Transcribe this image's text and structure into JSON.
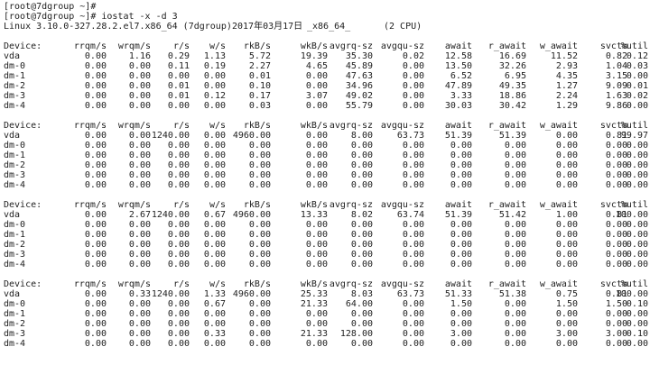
{
  "terminal": {
    "prompt_lines": [
      "[root@7dgroup ~]#",
      "[root@7dgroup ~]# iostat -x -d 3"
    ],
    "sysinfo": [
      "Linux 3.10.0-327.28.2.el7.x86_64 (7dgroup)",
      "2017年03月17日",
      "_x86_64_",
      "(2 CPU)"
    ],
    "reports": [
      {
        "header": [
          "Device:",
          "rrqm/s",
          "wrqm/s",
          "r/s",
          "w/s",
          "rkB/s",
          "wkB/s",
          "avgrq-sz",
          "avgqu-sz",
          "await",
          "r_await",
          "w_await",
          "svctm",
          "%util"
        ],
        "rows": [
          [
            "vda",
            "0.00",
            "1.16",
            "0.29",
            "1.13",
            "5.72",
            "19.39",
            "35.30",
            "0.02",
            "12.58",
            "16.69",
            "11.52",
            "0.82",
            "0.12"
          ],
          [
            "dm-0",
            "0.00",
            "0.00",
            "0.11",
            "0.19",
            "2.27",
            "4.65",
            "45.89",
            "0.00",
            "13.50",
            "32.26",
            "2.93",
            "1.04",
            "0.03"
          ],
          [
            "dm-1",
            "0.00",
            "0.00",
            "0.00",
            "0.00",
            "0.01",
            "0.00",
            "47.63",
            "0.00",
            "6.52",
            "6.95",
            "4.35",
            "3.15",
            "0.00"
          ],
          [
            "dm-2",
            "0.00",
            "0.00",
            "0.01",
            "0.00",
            "0.10",
            "0.00",
            "34.96",
            "0.00",
            "47.89",
            "49.35",
            "1.27",
            "9.09",
            "0.01"
          ],
          [
            "dm-3",
            "0.00",
            "0.00",
            "0.01",
            "0.12",
            "0.17",
            "3.07",
            "49.02",
            "0.00",
            "3.33",
            "18.86",
            "2.24",
            "1.63",
            "0.02"
          ],
          [
            "dm-4",
            "0.00",
            "0.00",
            "0.00",
            "0.00",
            "0.03",
            "0.00",
            "55.79",
            "0.00",
            "30.03",
            "30.42",
            "1.29",
            "9.86",
            "0.00"
          ]
        ]
      },
      {
        "header": [
          "Device:",
          "rrqm/s",
          "wrqm/s",
          "r/s",
          "w/s",
          "rkB/s",
          "wkB/s",
          "avgrq-sz",
          "avgqu-sz",
          "await",
          "r_await",
          "w_await",
          "svctm",
          "%util"
        ],
        "rows": [
          [
            "vda",
            "0.00",
            "0.00",
            "1240.00",
            "0.00",
            "4960.00",
            "0.00",
            "8.00",
            "63.73",
            "51.39",
            "51.39",
            "0.00",
            "0.81",
            "99.97"
          ],
          [
            "dm-0",
            "0.00",
            "0.00",
            "0.00",
            "0.00",
            "0.00",
            "0.00",
            "0.00",
            "0.00",
            "0.00",
            "0.00",
            "0.00",
            "0.00",
            "0.00"
          ],
          [
            "dm-1",
            "0.00",
            "0.00",
            "0.00",
            "0.00",
            "0.00",
            "0.00",
            "0.00",
            "0.00",
            "0.00",
            "0.00",
            "0.00",
            "0.00",
            "0.00"
          ],
          [
            "dm-2",
            "0.00",
            "0.00",
            "0.00",
            "0.00",
            "0.00",
            "0.00",
            "0.00",
            "0.00",
            "0.00",
            "0.00",
            "0.00",
            "0.00",
            "0.00"
          ],
          [
            "dm-3",
            "0.00",
            "0.00",
            "0.00",
            "0.00",
            "0.00",
            "0.00",
            "0.00",
            "0.00",
            "0.00",
            "0.00",
            "0.00",
            "0.00",
            "0.00"
          ],
          [
            "dm-4",
            "0.00",
            "0.00",
            "0.00",
            "0.00",
            "0.00",
            "0.00",
            "0.00",
            "0.00",
            "0.00",
            "0.00",
            "0.00",
            "0.00",
            "0.00"
          ]
        ]
      },
      {
        "header": [
          "Device:",
          "rrqm/s",
          "wrqm/s",
          "r/s",
          "w/s",
          "rkB/s",
          "wkB/s",
          "avgrq-sz",
          "avgqu-sz",
          "await",
          "r_await",
          "w_await",
          "svctm",
          "%util"
        ],
        "rows": [
          [
            "vda",
            "0.00",
            "2.67",
            "1240.00",
            "0.67",
            "4960.00",
            "13.33",
            "8.02",
            "63.74",
            "51.39",
            "51.42",
            "1.00",
            "0.81",
            "100.00"
          ],
          [
            "dm-0",
            "0.00",
            "0.00",
            "0.00",
            "0.00",
            "0.00",
            "0.00",
            "0.00",
            "0.00",
            "0.00",
            "0.00",
            "0.00",
            "0.00",
            "0.00"
          ],
          [
            "dm-1",
            "0.00",
            "0.00",
            "0.00",
            "0.00",
            "0.00",
            "0.00",
            "0.00",
            "0.00",
            "0.00",
            "0.00",
            "0.00",
            "0.00",
            "0.00"
          ],
          [
            "dm-2",
            "0.00",
            "0.00",
            "0.00",
            "0.00",
            "0.00",
            "0.00",
            "0.00",
            "0.00",
            "0.00",
            "0.00",
            "0.00",
            "0.00",
            "0.00"
          ],
          [
            "dm-3",
            "0.00",
            "0.00",
            "0.00",
            "0.00",
            "0.00",
            "0.00",
            "0.00",
            "0.00",
            "0.00",
            "0.00",
            "0.00",
            "0.00",
            "0.00"
          ],
          [
            "dm-4",
            "0.00",
            "0.00",
            "0.00",
            "0.00",
            "0.00",
            "0.00",
            "0.00",
            "0.00",
            "0.00",
            "0.00",
            "0.00",
            "0.00",
            "0.00"
          ]
        ]
      },
      {
        "header": [
          "Device:",
          "rrqm/s",
          "wrqm/s",
          "r/s",
          "w/s",
          "rkB/s",
          "wkB/s",
          "avgrq-sz",
          "avgqu-sz",
          "await",
          "r_await",
          "w_await",
          "svctm",
          "%util"
        ],
        "rows": [
          [
            "vda",
            "0.00",
            "0.33",
            "1240.00",
            "1.33",
            "4960.00",
            "25.33",
            "8.03",
            "63.73",
            "51.33",
            "51.38",
            "0.75",
            "0.81",
            "100.00"
          ],
          [
            "dm-0",
            "0.00",
            "0.00",
            "0.00",
            "0.67",
            "0.00",
            "21.33",
            "64.00",
            "0.00",
            "1.50",
            "0.00",
            "1.50",
            "1.50",
            "0.10"
          ],
          [
            "dm-1",
            "0.00",
            "0.00",
            "0.00",
            "0.00",
            "0.00",
            "0.00",
            "0.00",
            "0.00",
            "0.00",
            "0.00",
            "0.00",
            "0.00",
            "0.00"
          ],
          [
            "dm-2",
            "0.00",
            "0.00",
            "0.00",
            "0.00",
            "0.00",
            "0.00",
            "0.00",
            "0.00",
            "0.00",
            "0.00",
            "0.00",
            "0.00",
            "0.00"
          ],
          [
            "dm-3",
            "0.00",
            "0.00",
            "0.00",
            "0.33",
            "0.00",
            "21.33",
            "128.00",
            "0.00",
            "3.00",
            "0.00",
            "3.00",
            "3.00",
            "0.10"
          ],
          [
            "dm-4",
            "0.00",
            "0.00",
            "0.00",
            "0.00",
            "0.00",
            "0.00",
            "0.00",
            "0.00",
            "0.00",
            "0.00",
            "0.00",
            "0.00",
            "0.00"
          ]
        ]
      }
    ]
  }
}
